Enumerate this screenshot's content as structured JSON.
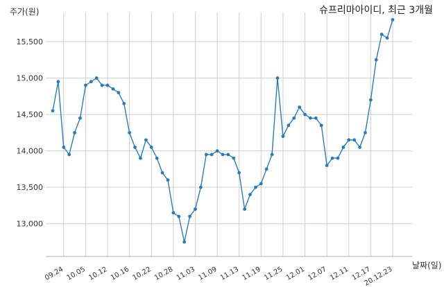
{
  "chart_data": {
    "type": "line",
    "title": "슈프리마아이디, 최근 3개월",
    "ylabel": "주가(원)",
    "xlabel": "날짜(일)",
    "ylim": [
      12550,
      15900
    ],
    "yticks": [
      13000,
      13500,
      14000,
      14500,
      15000,
      15500
    ],
    "ytick_labels": [
      "13,000",
      "13,500",
      "14,000",
      "14,500",
      "15,000",
      "15,500"
    ],
    "xticks": [
      {
        "index": 2,
        "label": "09.24"
      },
      {
        "index": 6,
        "label": "10.05"
      },
      {
        "index": 10,
        "label": "10.12"
      },
      {
        "index": 14,
        "label": "10.16"
      },
      {
        "index": 18,
        "label": "10.22"
      },
      {
        "index": 22,
        "label": "10.28"
      },
      {
        "index": 26,
        "label": "11.03"
      },
      {
        "index": 30,
        "label": "11.09"
      },
      {
        "index": 34,
        "label": "11.13"
      },
      {
        "index": 38,
        "label": "11.19"
      },
      {
        "index": 42,
        "label": "11.25"
      },
      {
        "index": 46,
        "label": "12.01"
      },
      {
        "index": 50,
        "label": "12.07"
      },
      {
        "index": 54,
        "label": "12.11"
      },
      {
        "index": 58,
        "label": "12.17"
      },
      {
        "index": 62,
        "label": "20.12.23"
      }
    ],
    "grid": true,
    "color": "#2b7bb9",
    "values": [
      14550,
      14950,
      14050,
      13950,
      14250,
      14450,
      14900,
      14950,
      15000,
      14900,
      14900,
      14850,
      14800,
      14650,
      14250,
      14050,
      13900,
      14150,
      14050,
      13900,
      13700,
      13600,
      13150,
      13100,
      12750,
      13100,
      13200,
      13500,
      13950,
      13950,
      14000,
      13950,
      13950,
      13900,
      13700,
      13200,
      13400,
      13500,
      13550,
      13750,
      13950,
      15000,
      14200,
      14350,
      14450,
      14600,
      14500,
      14450,
      14450,
      14350,
      13800,
      13900,
      13900,
      14050,
      14150,
      14150,
      14050,
      14250,
      14700,
      15250,
      15600,
      15550,
      15800
    ]
  }
}
